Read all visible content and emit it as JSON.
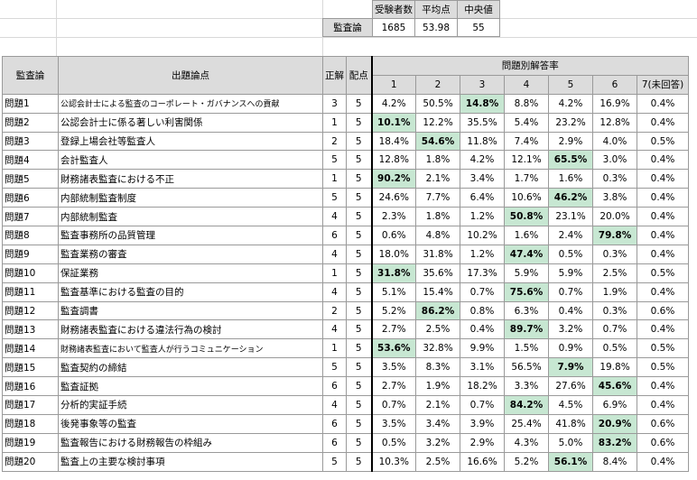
{
  "summary": {
    "headers": [
      "受験者数",
      "平均点",
      "中央値"
    ],
    "row_label": "監査論",
    "values": [
      "1685",
      "53.98",
      "55"
    ]
  },
  "table": {
    "col_subject": "監査論",
    "col_topic": "出題論点",
    "col_answer": "正解",
    "col_points": "配点",
    "group_header": "問題別解答率",
    "choice_headers": [
      "1",
      "2",
      "3",
      "4",
      "5",
      "6",
      "7(未回答)"
    ],
    "rows": [
      {
        "q": "問題1",
        "topic": "公認会計士による監査のコーポレート・ガバナンスへの貢献",
        "answer": "3",
        "points": "5",
        "rates": [
          "4.2%",
          "50.5%",
          "14.8%",
          "8.8%",
          "4.2%",
          "16.9%",
          "0.4%"
        ]
      },
      {
        "q": "問題2",
        "topic": "公認会計士に係る著しい利害関係",
        "answer": "1",
        "points": "5",
        "rates": [
          "10.1%",
          "12.2%",
          "35.5%",
          "5.4%",
          "23.2%",
          "12.8%",
          "0.4%"
        ]
      },
      {
        "q": "問題3",
        "topic": "登録上場会社等監査人",
        "answer": "2",
        "points": "5",
        "rates": [
          "18.4%",
          "54.6%",
          "11.8%",
          "7.4%",
          "2.9%",
          "4.0%",
          "0.5%"
        ]
      },
      {
        "q": "問題4",
        "topic": "会計監査人",
        "answer": "5",
        "points": "5",
        "rates": [
          "12.8%",
          "1.8%",
          "4.2%",
          "12.1%",
          "65.5%",
          "3.0%",
          "0.4%"
        ]
      },
      {
        "q": "問題5",
        "topic": "財務諸表監査における不正",
        "answer": "1",
        "points": "5",
        "rates": [
          "90.2%",
          "2.1%",
          "3.4%",
          "1.7%",
          "1.6%",
          "0.3%",
          "0.4%"
        ]
      },
      {
        "q": "問題6",
        "topic": "内部統制監査制度",
        "answer": "5",
        "points": "5",
        "rates": [
          "24.6%",
          "7.7%",
          "6.4%",
          "10.6%",
          "46.2%",
          "3.8%",
          "0.4%"
        ]
      },
      {
        "q": "問題7",
        "topic": "内部統制監査",
        "answer": "4",
        "points": "5",
        "rates": [
          "2.3%",
          "1.8%",
          "1.2%",
          "50.8%",
          "23.1%",
          "20.0%",
          "0.4%"
        ]
      },
      {
        "q": "問題8",
        "topic": "監査事務所の品質管理",
        "answer": "6",
        "points": "5",
        "rates": [
          "0.6%",
          "4.8%",
          "10.2%",
          "1.6%",
          "2.4%",
          "79.8%",
          "0.4%"
        ]
      },
      {
        "q": "問題9",
        "topic": "監査業務の審査",
        "answer": "4",
        "points": "5",
        "rates": [
          "18.0%",
          "31.8%",
          "1.2%",
          "47.4%",
          "0.5%",
          "0.3%",
          "0.4%"
        ]
      },
      {
        "q": "問題10",
        "topic": "保証業務",
        "answer": "1",
        "points": "5",
        "rates": [
          "31.8%",
          "35.6%",
          "17.3%",
          "5.9%",
          "5.9%",
          "2.5%",
          "0.5%"
        ]
      },
      {
        "q": "問題11",
        "topic": "監査基準における監査の目的",
        "answer": "4",
        "points": "5",
        "rates": [
          "5.1%",
          "15.4%",
          "0.7%",
          "75.6%",
          "0.7%",
          "1.9%",
          "0.4%"
        ]
      },
      {
        "q": "問題12",
        "topic": "監査調書",
        "answer": "2",
        "points": "5",
        "rates": [
          "5.2%",
          "86.2%",
          "0.8%",
          "6.3%",
          "0.4%",
          "0.3%",
          "0.6%"
        ]
      },
      {
        "q": "問題13",
        "topic": "財務諸表監査における違法行為の検討",
        "answer": "4",
        "points": "5",
        "rates": [
          "2.7%",
          "2.5%",
          "0.4%",
          "89.7%",
          "3.2%",
          "0.7%",
          "0.4%"
        ]
      },
      {
        "q": "問題14",
        "topic": "財務諸表監査において監査人が行うコミュニケーション",
        "answer": "1",
        "points": "5",
        "rates": [
          "53.6%",
          "32.8%",
          "9.9%",
          "1.5%",
          "0.9%",
          "0.5%",
          "0.5%"
        ]
      },
      {
        "q": "問題15",
        "topic": "監査契約の締結",
        "answer": "5",
        "points": "5",
        "rates": [
          "3.5%",
          "8.3%",
          "3.1%",
          "56.5%",
          "7.9%",
          "19.8%",
          "0.5%"
        ]
      },
      {
        "q": "問題16",
        "topic": "監査証拠",
        "answer": "6",
        "points": "5",
        "rates": [
          "2.7%",
          "1.9%",
          "18.2%",
          "3.3%",
          "27.6%",
          "45.6%",
          "0.4%"
        ]
      },
      {
        "q": "問題17",
        "topic": "分析的実証手続",
        "answer": "4",
        "points": "5",
        "rates": [
          "0.7%",
          "2.1%",
          "0.7%",
          "84.2%",
          "4.5%",
          "6.9%",
          "0.4%"
        ]
      },
      {
        "q": "問題18",
        "topic": "後発事象等の監査",
        "answer": "6",
        "points": "5",
        "rates": [
          "3.5%",
          "3.4%",
          "3.9%",
          "25.4%",
          "41.8%",
          "20.9%",
          "0.6%"
        ]
      },
      {
        "q": "問題19",
        "topic": "監査報告における財務報告の枠組み",
        "answer": "6",
        "points": "5",
        "rates": [
          "0.5%",
          "3.2%",
          "2.9%",
          "4.3%",
          "5.0%",
          "83.2%",
          "0.6%"
        ]
      },
      {
        "q": "問題20",
        "topic": "監査上の主要な検討事項",
        "answer": "5",
        "points": "5",
        "rates": [
          "10.3%",
          "2.5%",
          "16.6%",
          "5.2%",
          "56.1%",
          "8.4%",
          "0.4%"
        ]
      }
    ]
  },
  "colors": {
    "header_bg": "#dcdcdc",
    "correct_highlight": "#c7e7d2",
    "grid": "#9a9a9a"
  }
}
